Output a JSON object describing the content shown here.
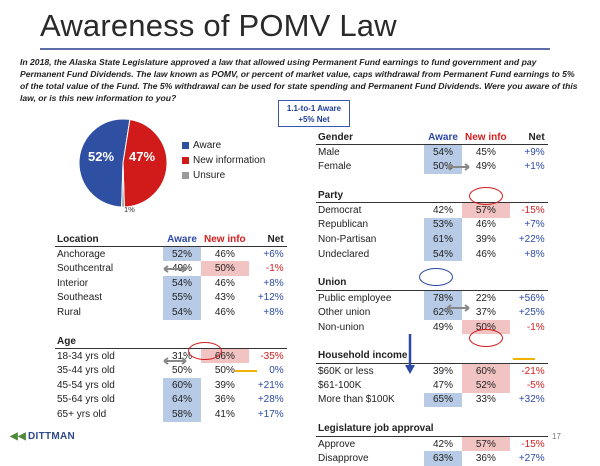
{
  "title": "Awareness of POMV Law",
  "intro": "In 2018, the Alaska State Legislature approved a law that allowed using Permanent Fund earnings to fund government and pay Permanent Fund Dividends. The law known as POMV, or percent of market value, caps withdrawal from Permanent Fund earnings to 5% of the total value of the Fund. The 5% withdrawal can be used for state spending and Permanent Fund Dividends. Were you aware of this law, or is this new information to you?",
  "callout": {
    "line1": "1.1-to-1 Aware",
    "line2": "+5% Net"
  },
  "colors": {
    "aware": "#2f4fa3",
    "new_info": "#d11a1a",
    "unsure": "#9a9a9a",
    "accent": "#5a6fa8"
  },
  "chart_data": [
    {
      "type": "pie",
      "categories": [
        "Aware",
        "New information",
        "Unsure"
      ],
      "values": [
        52,
        47,
        1
      ],
      "labels": [
        "52%",
        "47%",
        "1%"
      ]
    },
    {
      "type": "table",
      "columns": [
        "Aware",
        "New info",
        "Net"
      ],
      "sections": [
        {
          "title": "Location",
          "rows": [
            {
              "label": "Anchorage",
              "aware": "52%",
              "new": "46%",
              "net": "+6%"
            },
            {
              "label": "Southcentral",
              "aware": "49%",
              "new": "50%",
              "net": "-1%"
            },
            {
              "label": "Interior",
              "aware": "54%",
              "new": "46%",
              "net": "+8%"
            },
            {
              "label": "Southeast",
              "aware": "55%",
              "new": "43%",
              "net": "+12%"
            },
            {
              "label": "Rural",
              "aware": "54%",
              "new": "46%",
              "net": "+8%"
            }
          ]
        },
        {
          "title": "Age",
          "rows": [
            {
              "label": "18-34 yrs old",
              "aware": "31%",
              "new": "66%",
              "net": "-35%"
            },
            {
              "label": "35-44 yrs old",
              "aware": "50%",
              "new": "50%",
              "net": "0%"
            },
            {
              "label": "45-54 yrs old",
              "aware": "60%",
              "new": "39%",
              "net": "+21%"
            },
            {
              "label": "55-64 yrs old",
              "aware": "64%",
              "new": "36%",
              "net": "+28%"
            },
            {
              "label": "65+ yrs old",
              "aware": "58%",
              "new": "41%",
              "net": "+17%"
            }
          ]
        },
        {
          "title": "Gender",
          "rows": [
            {
              "label": "Male",
              "aware": "54%",
              "new": "45%",
              "net": "+9%"
            },
            {
              "label": "Female",
              "aware": "50%",
              "new": "49%",
              "net": "+1%"
            }
          ]
        },
        {
          "title": "Party",
          "rows": [
            {
              "label": "Democrat",
              "aware": "42%",
              "new": "57%",
              "net": "-15%"
            },
            {
              "label": "Republican",
              "aware": "53%",
              "new": "46%",
              "net": "+7%"
            },
            {
              "label": "Non-Partisan",
              "aware": "61%",
              "new": "39%",
              "net": "+22%"
            },
            {
              "label": "Undeclared",
              "aware": "54%",
              "new": "46%",
              "net": "+8%"
            }
          ]
        },
        {
          "title": "Union",
          "rows": [
            {
              "label": "Public employee",
              "aware": "78%",
              "new": "22%",
              "net": "+56%"
            },
            {
              "label": "Other union",
              "aware": "62%",
              "new": "37%",
              "net": "+25%"
            },
            {
              "label": "Non-union",
              "aware": "49%",
              "new": "50%",
              "net": "-1%"
            }
          ]
        },
        {
          "title": "Household income",
          "rows": [
            {
              "label": "$60K or less",
              "aware": "39%",
              "new": "60%",
              "net": "-21%"
            },
            {
              "label": "$61-100K",
              "aware": "47%",
              "new": "52%",
              "net": "-5%"
            },
            {
              "label": "More than $100K",
              "aware": "65%",
              "new": "33%",
              "net": "+32%"
            }
          ]
        },
        {
          "title": "Legislature job approval",
          "rows": [
            {
              "label": "Approve",
              "aware": "42%",
              "new": "57%",
              "net": "-15%"
            },
            {
              "label": "Disapprove",
              "aware": "63%",
              "new": "36%",
              "net": "+27%"
            }
          ]
        }
      ]
    }
  ],
  "footer": {
    "logo": "DITTMAN",
    "page": "17"
  }
}
